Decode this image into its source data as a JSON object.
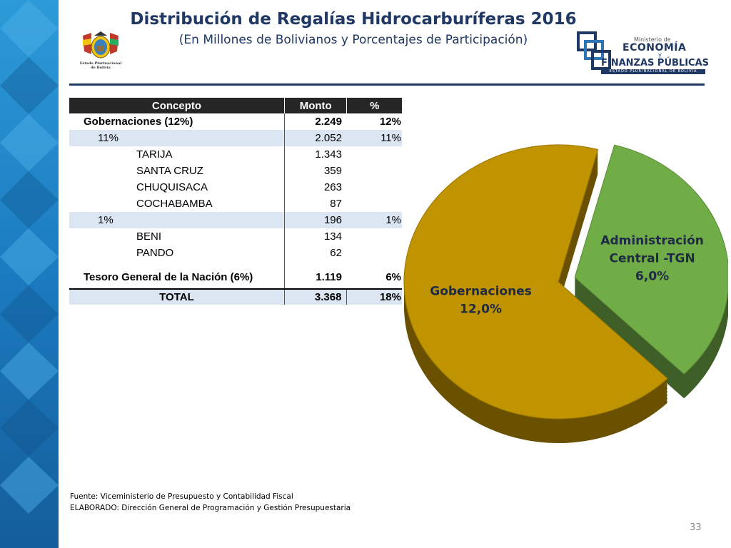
{
  "header": {
    "title": "Distribución de Regalías Hidrocarburíferas 2016",
    "subtitle": "(En Millones de Bolivianos y Porcentajes de Participación)"
  },
  "logos": {
    "crest_caption_1": "Estado Plurinacional",
    "crest_caption_2": "de Bolivia",
    "ministry_small": "Ministerio de",
    "ministry_line1": "ECONOMÍA",
    "ministry_y": "Y",
    "ministry_line2": "FINANZAS PÚBLICAS",
    "ministry_line3": "ESTADO PLURINACIONAL DE BOLIVIA"
  },
  "table": {
    "headers": [
      "Concepto",
      "Monto",
      "%"
    ],
    "rows": [
      {
        "concepto": "Gobernaciones (12%)",
        "monto": "2.249",
        "pct": "12%"
      },
      {
        "concepto": "11%",
        "monto": "2.052",
        "pct": "11%"
      },
      {
        "concepto": "TARIJA",
        "monto": "1.343",
        "pct": ""
      },
      {
        "concepto": "SANTA CRUZ",
        "monto": "359",
        "pct": ""
      },
      {
        "concepto": "CHUQUISACA",
        "monto": "263",
        "pct": ""
      },
      {
        "concepto": "COCHABAMBA",
        "monto": "87",
        "pct": ""
      },
      {
        "concepto": "1%",
        "monto": "196",
        "pct": "1%"
      },
      {
        "concepto": "BENI",
        "monto": "134",
        "pct": ""
      },
      {
        "concepto": "PANDO",
        "monto": "62",
        "pct": ""
      },
      {
        "concepto": "Tesoro General de la Nación (6%)",
        "monto": "1.119",
        "pct": "6%"
      }
    ],
    "total": {
      "concepto": "TOTAL",
      "monto": "3.368",
      "pct": "18%"
    }
  },
  "chart_data": {
    "type": "pie",
    "title": "",
    "slices": [
      {
        "label_line1": "Administración",
        "label_line2": "Central -TGN",
        "value_label": "6,0%",
        "value": 6.0,
        "color": "#70ad47",
        "exploded": true
      },
      {
        "label_line1": "Gobernaciones",
        "label_line2": "",
        "value_label": "12,0%",
        "value": 12.0,
        "color": "#c09300",
        "exploded": false
      }
    ]
  },
  "footer": {
    "source": "Fuente: Viceministerio de Presupuesto y Contabilidad Fiscal",
    "author": "ELABORADO: Dirección General de Programación y Gestión Presupuestaria"
  },
  "page_number": "33",
  "colors": {
    "title": "#1f3864",
    "table_header": "#262626",
    "row_shade": "#dce6f2",
    "band_dark": "#1a6aa8",
    "band_light": "#3ea0d9"
  }
}
